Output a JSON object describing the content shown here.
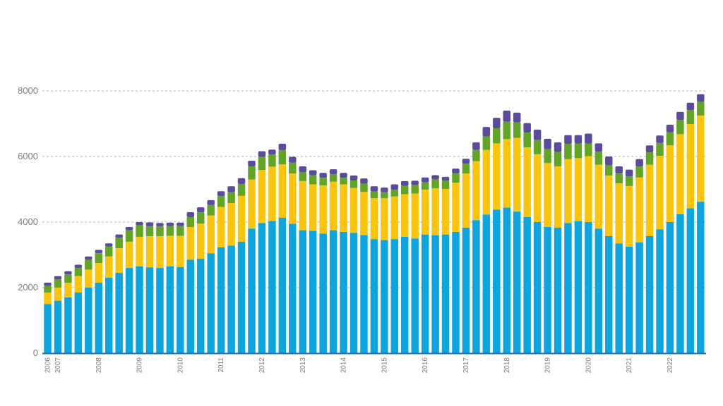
{
  "chart_data": {
    "type": "bar",
    "stacked": true,
    "title": "",
    "xlabel": "",
    "ylabel": "",
    "ylim": [
      0,
      8000
    ],
    "grid": "horizontal-dashed",
    "legend": "none",
    "y_ticks": [
      "0",
      "2000",
      "4000",
      "6000",
      "8000"
    ],
    "x_year_labels": [
      {
        "label": "2006",
        "bar": 0
      },
      {
        "label": "2007",
        "bar": 1
      },
      {
        "label": "2008",
        "bar": 5
      },
      {
        "label": "2009",
        "bar": 9
      },
      {
        "label": "2010",
        "bar": 13
      },
      {
        "label": "2011",
        "bar": 17
      },
      {
        "label": "2012",
        "bar": 21
      },
      {
        "label": "2013",
        "bar": 25
      },
      {
        "label": "2014",
        "bar": 29
      },
      {
        "label": "2015",
        "bar": 33
      },
      {
        "label": "2016",
        "bar": 37
      },
      {
        "label": "2017",
        "bar": 41
      },
      {
        "label": "2018",
        "bar": 45
      },
      {
        "label": "2019",
        "bar": 49
      },
      {
        "label": "2020",
        "bar": 53
      },
      {
        "label": "2021",
        "bar": 57
      },
      {
        "label": "2022",
        "bar": 61
      }
    ],
    "series": [
      {
        "color": "#0ea5df",
        "values": [
          1500,
          1600,
          1700,
          1850,
          2000,
          2150,
          2300,
          2450,
          2600,
          2650,
          2620,
          2600,
          2650,
          2630,
          2850,
          2880,
          3050,
          3230,
          3280,
          3400,
          3800,
          3970,
          4030,
          4130,
          3950,
          3750,
          3730,
          3650,
          3750,
          3700,
          3670,
          3600,
          3480,
          3450,
          3480,
          3550,
          3500,
          3620,
          3600,
          3620,
          3700,
          3830,
          4060,
          4230,
          4380,
          4440,
          4320,
          4150,
          4000,
          3850,
          3830,
          3970,
          4030,
          4000,
          3800,
          3570,
          3350,
          3250,
          3380,
          3570,
          3780,
          4000,
          4240,
          4420,
          4620
        ]
      },
      {
        "color": "#fbc50f",
        "values": [
          350,
          400,
          450,
          500,
          550,
          600,
          650,
          750,
          800,
          900,
          950,
          970,
          930,
          950,
          1000,
          1070,
          1150,
          1230,
          1300,
          1400,
          1500,
          1620,
          1660,
          1630,
          1530,
          1500,
          1420,
          1470,
          1480,
          1450,
          1370,
          1320,
          1250,
          1280,
          1300,
          1300,
          1370,
          1370,
          1430,
          1390,
          1500,
          1650,
          1800,
          1970,
          2020,
          2090,
          2250,
          2130,
          2070,
          1950,
          1870,
          1950,
          1920,
          2010,
          1950,
          1850,
          1830,
          1850,
          1980,
          2180,
          2240,
          2340,
          2440,
          2570,
          2630
        ]
      },
      {
        "color": "#62a425",
        "values": [
          200,
          250,
          250,
          250,
          300,
          300,
          300,
          320,
          350,
          350,
          300,
          300,
          300,
          300,
          300,
          350,
          320,
          330,
          330,
          360,
          400,
          400,
          370,
          430,
          330,
          270,
          280,
          230,
          230,
          200,
          230,
          250,
          200,
          180,
          210,
          250,
          260,
          220,
          270,
          250,
          280,
          300,
          340,
          410,
          460,
          530,
          470,
          450,
          430,
          420,
          440,
          460,
          440,
          380,
          400,
          310,
          300,
          290,
          330,
          380,
          390,
          400,
          430,
          420,
          420
        ]
      },
      {
        "color": "#5a4b9c",
        "values": [
          100,
          100,
          100,
          100,
          100,
          100,
          100,
          100,
          100,
          100,
          120,
          100,
          100,
          100,
          150,
          150,
          150,
          150,
          180,
          180,
          170,
          170,
          150,
          200,
          180,
          180,
          150,
          150,
          150,
          150,
          150,
          160,
          160,
          140,
          160,
          150,
          130,
          150,
          130,
          120,
          150,
          150,
          230,
          290,
          320,
          340,
          300,
          290,
          320,
          320,
          290,
          270,
          260,
          310,
          250,
          270,
          220,
          210,
          230,
          210,
          230,
          230,
          250,
          230,
          230
        ]
      }
    ]
  }
}
